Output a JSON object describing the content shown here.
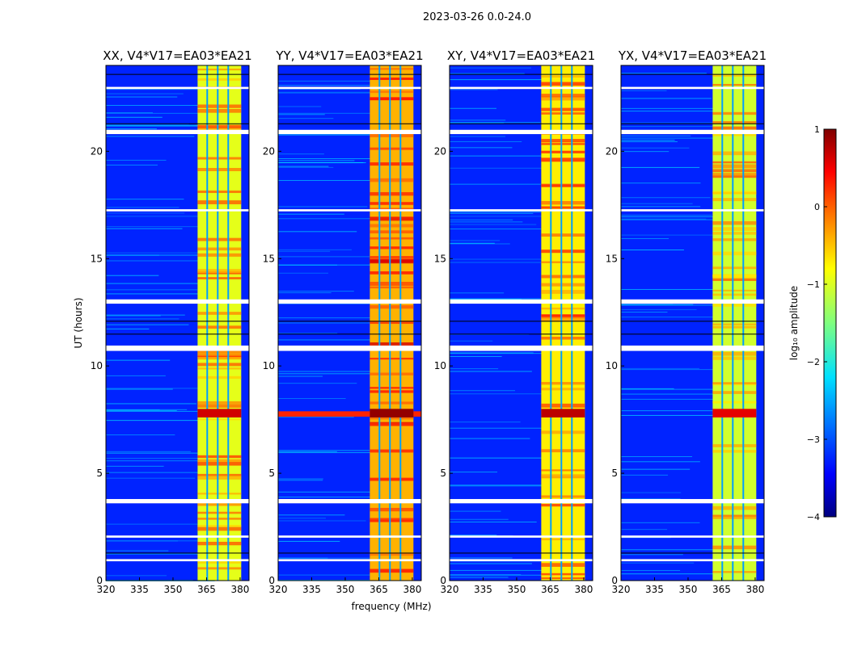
{
  "suptitle": "2023-03-26 0.0-24.0",
  "chart_data": {
    "type": "heatmap",
    "xlabel": "frequency (MHz)",
    "ylabel": "UT (hours)",
    "xlim": [
      320,
      384
    ],
    "ylim": [
      0,
      24
    ],
    "xticks": [
      320,
      335,
      350,
      365,
      380
    ],
    "yticks": [
      0,
      5,
      10,
      15,
      20
    ],
    "panels": [
      {
        "title": "XX, V4*V17=EA03*EA21",
        "band_level": -1.0,
        "event_level": 0.6,
        "wideband_event": false
      },
      {
        "title": "YY, V4*V17=EA03*EA21",
        "band_level": -0.5,
        "event_level": 0.9,
        "wideband_event": true
      },
      {
        "title": "XY, V4*V17=EA03*EA21",
        "band_level": -0.8,
        "event_level": 0.7,
        "wideband_event": false
      },
      {
        "title": "YX, V4*V17=EA03*EA21",
        "band_level": -1.1,
        "event_level": 0.5,
        "wideband_event": false
      }
    ],
    "background_level": -3.2,
    "rfi_band_mhz": [
      361,
      380.5
    ],
    "band_channel_gaps_mhz": [
      365.3,
      370,
      374.7
    ],
    "flagged_hours": [
      [
        0.9,
        1.0
      ],
      [
        2.0,
        2.1
      ],
      [
        3.6,
        3.8
      ],
      [
        10.7,
        10.95
      ],
      [
        12.9,
        13.1
      ],
      [
        17.2,
        17.3
      ],
      [
        20.8,
        21.0
      ],
      [
        22.9,
        23.0
      ]
    ],
    "strong_event_hours": [
      7.6,
      8.0
    ],
    "colorbar": {
      "label": "log₁₀ amplitude",
      "range": [
        -4,
        1
      ],
      "ticks": [
        1,
        0,
        -1,
        -2,
        -3,
        -4
      ],
      "tick_labels": [
        "1",
        "0",
        "−1",
        "−2",
        "−3",
        "−4"
      ],
      "colormap": "jet"
    }
  }
}
